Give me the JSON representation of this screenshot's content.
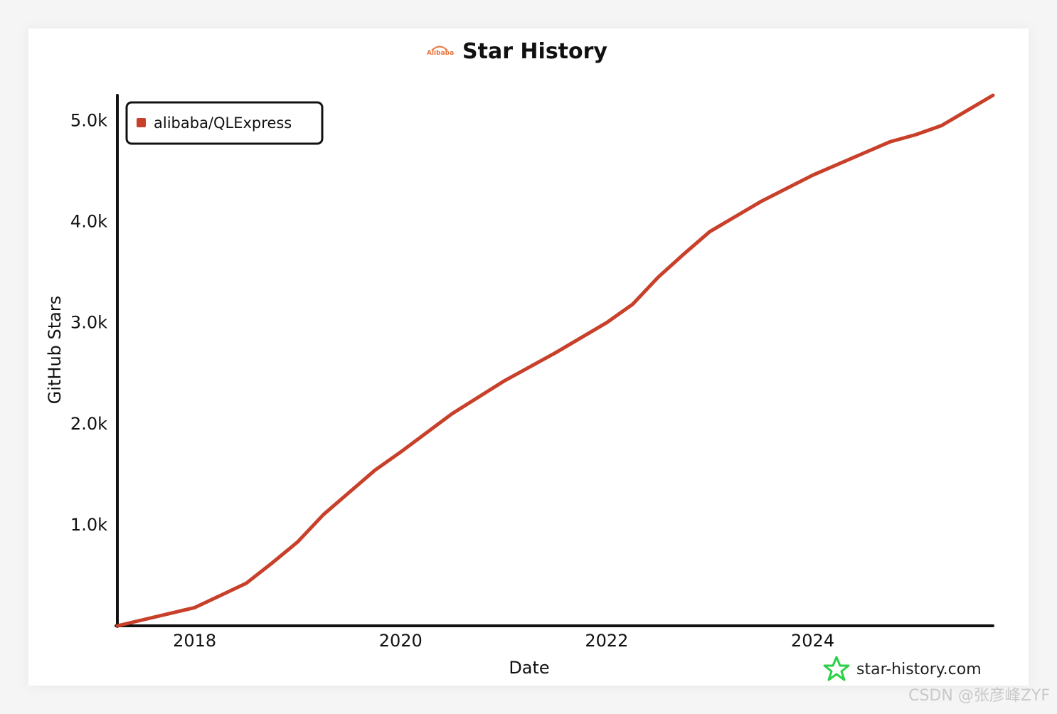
{
  "chart_data": {
    "type": "line",
    "title": "Star History",
    "xlabel": "Date",
    "ylabel": "GitHub Stars",
    "x_ticks": [
      "2018",
      "2020",
      "2022",
      "2024"
    ],
    "y_ticks": [
      "1.0k",
      "2.0k",
      "3.0k",
      "4.0k",
      "5.0k"
    ],
    "y_tick_values": [
      1000,
      2000,
      3000,
      4000,
      5000
    ],
    "ylim": [
      0,
      5250
    ],
    "xlim": [
      2017.25,
      2025.75
    ],
    "legend": "top-left",
    "grid": false,
    "series": [
      {
        "name": "alibaba/QLExpress",
        "color": "#c8402a",
        "points": [
          [
            2017.25,
            0
          ],
          [
            2017.5,
            60
          ],
          [
            2017.75,
            120
          ],
          [
            2018.0,
            180
          ],
          [
            2018.25,
            300
          ],
          [
            2018.5,
            420
          ],
          [
            2018.75,
            620
          ],
          [
            2019.0,
            830
          ],
          [
            2019.25,
            1100
          ],
          [
            2019.5,
            1320
          ],
          [
            2019.75,
            1540
          ],
          [
            2020.0,
            1720
          ],
          [
            2020.25,
            1910
          ],
          [
            2020.5,
            2100
          ],
          [
            2020.75,
            2260
          ],
          [
            2021.0,
            2420
          ],
          [
            2021.5,
            2700
          ],
          [
            2022.0,
            3000
          ],
          [
            2022.25,
            3180
          ],
          [
            2022.5,
            3450
          ],
          [
            2022.75,
            3680
          ],
          [
            2023.0,
            3900
          ],
          [
            2023.5,
            4200
          ],
          [
            2024.0,
            4460
          ],
          [
            2024.5,
            4680
          ],
          [
            2024.75,
            4790
          ],
          [
            2025.0,
            4860
          ],
          [
            2025.25,
            4950
          ],
          [
            2025.5,
            5100
          ],
          [
            2025.75,
            5250
          ]
        ]
      }
    ]
  },
  "brand": {
    "logo_word": "Alibaba",
    "site": "star-history.com",
    "star_icon_color": "#2bd146"
  },
  "watermark": "CSDN @张彦峰ZYF"
}
